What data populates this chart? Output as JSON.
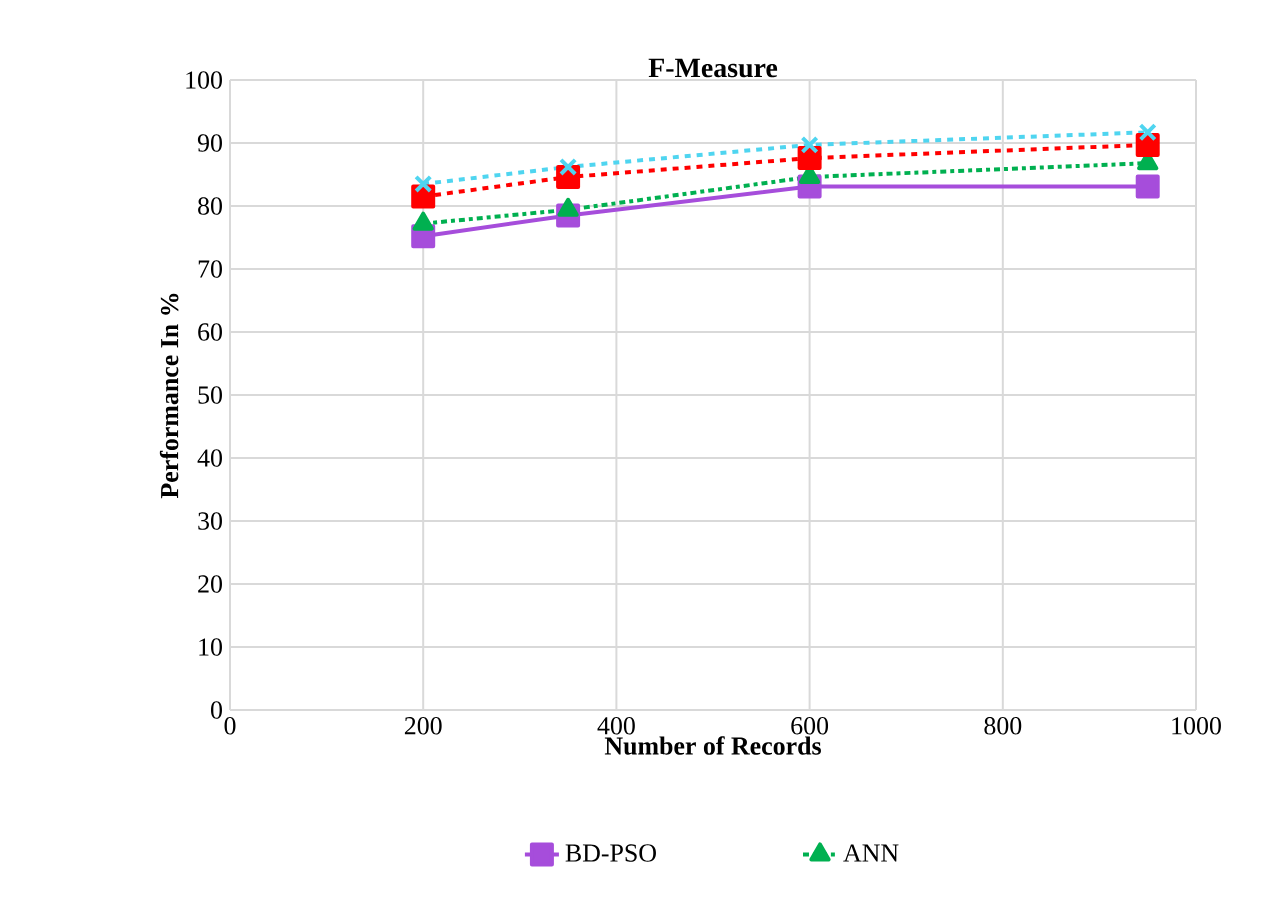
{
  "chart_data": {
    "type": "line",
    "title": "F-Measure",
    "xlabel": "Number of Records",
    "ylabel": "Performance In %",
    "x": [
      200,
      350,
      600,
      950
    ],
    "series": [
      {
        "name": "BD-PSO",
        "color": "#a64ddb",
        "values": [
          75.2,
          78.5,
          83.1,
          83.1
        ],
        "marker": "square",
        "line_style": "solid"
      },
      {
        "name": "ANN",
        "color": "#00b050",
        "values": [
          77.2,
          79.4,
          84.6,
          86.8
        ],
        "marker": "triangle",
        "line_style": "dashdotted"
      },
      {
        "color": "#ff0000",
        "values": [
          81.5,
          84.6,
          87.6,
          89.7
        ],
        "marker": "square",
        "line_style": "dashed"
      },
      {
        "color": "#4fd5f0",
        "values": [
          83.5,
          86.2,
          89.7,
          91.7
        ],
        "marker": "cross",
        "line_style": "dashed"
      }
    ],
    "xlim": [
      0,
      1000
    ],
    "xticks": [
      0,
      200,
      400,
      600,
      800,
      1000
    ],
    "ylim": [
      0,
      100
    ],
    "yticks": [
      0,
      10,
      20,
      30,
      40,
      50,
      60,
      70,
      80,
      90,
      100
    ],
    "grid": true,
    "legend": "bottom"
  }
}
